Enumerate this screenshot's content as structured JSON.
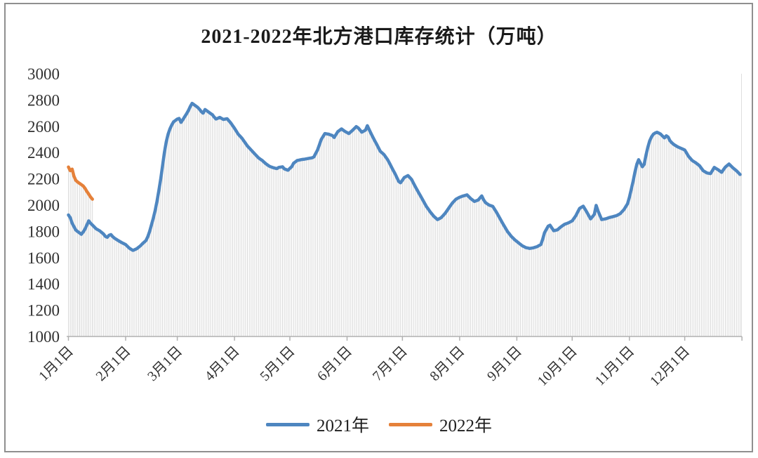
{
  "title": "2021-2022年北方港口库存统计（万吨）",
  "chart_data": {
    "type": "line",
    "title": "2021-2022年北方港口库存统计（万吨）",
    "unit": "万吨",
    "grid": false,
    "droplines": {
      "show": true,
      "color": "#d9d9d9"
    },
    "axis_color": "#b0b0b0",
    "label_color": "#303030",
    "y_axis": {
      "min": 1000,
      "max": 3000,
      "step": 200,
      "tick_labels": [
        "3000",
        "2800",
        "2600",
        "2400",
        "2200",
        "2000",
        "1800",
        "1600",
        "1400",
        "1200",
        "1000"
      ]
    },
    "x_axis": {
      "tick_labels": [
        "1月1日",
        "2月1日",
        "3月1日",
        "4月1日",
        "5月1日",
        "6月1日",
        "7月1日",
        "8月1日",
        "9月1日",
        "10月1日",
        "11月1日",
        "12月1日"
      ],
      "month_start_doys": [
        1,
        32,
        60,
        91,
        121,
        152,
        182,
        213,
        244,
        274,
        305,
        335
      ],
      "days_in_year": 365
    },
    "legend": {
      "position": "bottom",
      "entries": [
        {
          "label": "2021年",
          "color": "#4e86c0"
        },
        {
          "label": "2022年",
          "color": "#e5813a"
        }
      ]
    },
    "series": [
      {
        "name": "2021年",
        "color": "#4e86c0",
        "points": [
          [
            1,
            1925
          ],
          [
            2,
            1905
          ],
          [
            3,
            1862
          ],
          [
            5,
            1810
          ],
          [
            7,
            1788
          ],
          [
            8,
            1778
          ],
          [
            9,
            1795
          ],
          [
            10,
            1818
          ],
          [
            11,
            1850
          ],
          [
            12,
            1880
          ],
          [
            13,
            1862
          ],
          [
            14,
            1848
          ],
          [
            16,
            1820
          ],
          [
            18,
            1804
          ],
          [
            20,
            1780
          ],
          [
            21,
            1762
          ],
          [
            22,
            1755
          ],
          [
            23,
            1770
          ],
          [
            24,
            1776
          ],
          [
            25,
            1760
          ],
          [
            26,
            1748
          ],
          [
            28,
            1730
          ],
          [
            30,
            1714
          ],
          [
            32,
            1700
          ],
          [
            34,
            1672
          ],
          [
            36,
            1655
          ],
          [
            38,
            1668
          ],
          [
            40,
            1690
          ],
          [
            41,
            1705
          ],
          [
            43,
            1730
          ],
          [
            44,
            1760
          ],
          [
            45,
            1800
          ],
          [
            46,
            1850
          ],
          [
            47,
            1900
          ],
          [
            48,
            1960
          ],
          [
            49,
            2030
          ],
          [
            50,
            2110
          ],
          [
            51,
            2200
          ],
          [
            52,
            2300
          ],
          [
            53,
            2400
          ],
          [
            54,
            2480
          ],
          [
            55,
            2540
          ],
          [
            56,
            2580
          ],
          [
            57,
            2610
          ],
          [
            58,
            2635
          ],
          [
            60,
            2655
          ],
          [
            61,
            2660
          ],
          [
            62,
            2630
          ],
          [
            63,
            2650
          ],
          [
            65,
            2695
          ],
          [
            66,
            2720
          ],
          [
            67,
            2750
          ],
          [
            68,
            2775
          ],
          [
            69,
            2765
          ],
          [
            70,
            2755
          ],
          [
            71,
            2745
          ],
          [
            72,
            2730
          ],
          [
            73,
            2712
          ],
          [
            74,
            2700
          ],
          [
            75,
            2728
          ],
          [
            76,
            2718
          ],
          [
            77,
            2708
          ],
          [
            79,
            2688
          ],
          [
            80,
            2670
          ],
          [
            81,
            2655
          ],
          [
            83,
            2668
          ],
          [
            85,
            2652
          ],
          [
            87,
            2658
          ],
          [
            89,
            2625
          ],
          [
            90,
            2605
          ],
          [
            91,
            2585
          ],
          [
            93,
            2540
          ],
          [
            95,
            2510
          ],
          [
            96,
            2490
          ],
          [
            98,
            2450
          ],
          [
            100,
            2420
          ],
          [
            102,
            2390
          ],
          [
            104,
            2360
          ],
          [
            106,
            2340
          ],
          [
            108,
            2315
          ],
          [
            110,
            2295
          ],
          [
            112,
            2285
          ],
          [
            114,
            2278
          ],
          [
            115,
            2287
          ],
          [
            117,
            2292
          ],
          [
            118,
            2276
          ],
          [
            120,
            2265
          ],
          [
            121,
            2280
          ],
          [
            122,
            2292
          ],
          [
            123,
            2319
          ],
          [
            125,
            2340
          ],
          [
            127,
            2346
          ],
          [
            129,
            2350
          ],
          [
            131,
            2355
          ],
          [
            133,
            2360
          ],
          [
            134,
            2367
          ],
          [
            136,
            2420
          ],
          [
            138,
            2500
          ],
          [
            140,
            2545
          ],
          [
            142,
            2540
          ],
          [
            144,
            2530
          ],
          [
            145,
            2515
          ],
          [
            147,
            2560
          ],
          [
            149,
            2580
          ],
          [
            151,
            2560
          ],
          [
            153,
            2545
          ],
          [
            155,
            2570
          ],
          [
            157,
            2598
          ],
          [
            158,
            2588
          ],
          [
            160,
            2555
          ],
          [
            162,
            2571
          ],
          [
            163,
            2605
          ],
          [
            165,
            2545
          ],
          [
            166,
            2517
          ],
          [
            168,
            2464
          ],
          [
            170,
            2410
          ],
          [
            172,
            2385
          ],
          [
            174,
            2346
          ],
          [
            176,
            2292
          ],
          [
            178,
            2239
          ],
          [
            180,
            2180
          ],
          [
            181,
            2170
          ],
          [
            183,
            2210
          ],
          [
            185,
            2225
          ],
          [
            187,
            2195
          ],
          [
            189,
            2140
          ],
          [
            191,
            2090
          ],
          [
            193,
            2040
          ],
          [
            195,
            1990
          ],
          [
            197,
            1950
          ],
          [
            199,
            1915
          ],
          [
            201,
            1890
          ],
          [
            203,
            1905
          ],
          [
            205,
            1935
          ],
          [
            207,
            1975
          ],
          [
            209,
            2015
          ],
          [
            211,
            2045
          ],
          [
            213,
            2060
          ],
          [
            215,
            2070
          ],
          [
            217,
            2078
          ],
          [
            219,
            2050
          ],
          [
            221,
            2028
          ],
          [
            223,
            2038
          ],
          [
            225,
            2070
          ],
          [
            226,
            2040
          ],
          [
            227,
            2019
          ],
          [
            229,
            2000
          ],
          [
            231,
            1990
          ],
          [
            233,
            1945
          ],
          [
            235,
            1895
          ],
          [
            237,
            1845
          ],
          [
            239,
            1798
          ],
          [
            241,
            1762
          ],
          [
            243,
            1735
          ],
          [
            245,
            1712
          ],
          [
            247,
            1690
          ],
          [
            249,
            1676
          ],
          [
            251,
            1670
          ],
          [
            253,
            1675
          ],
          [
            255,
            1684
          ],
          [
            257,
            1700
          ],
          [
            258,
            1740
          ],
          [
            259,
            1790
          ],
          [
            261,
            1840
          ],
          [
            262,
            1847
          ],
          [
            264,
            1805
          ],
          [
            266,
            1812
          ],
          [
            268,
            1836
          ],
          [
            270,
            1855
          ],
          [
            272,
            1865
          ],
          [
            274,
            1880
          ],
          [
            276,
            1920
          ],
          [
            278,
            1975
          ],
          [
            280,
            1992
          ],
          [
            282,
            1945
          ],
          [
            284,
            1895
          ],
          [
            286,
            1930
          ],
          [
            287,
            1998
          ],
          [
            288,
            1955
          ],
          [
            290,
            1890
          ],
          [
            292,
            1895
          ],
          [
            294,
            1905
          ],
          [
            296,
            1912
          ],
          [
            298,
            1920
          ],
          [
            300,
            1935
          ],
          [
            302,
            1965
          ],
          [
            304,
            2010
          ],
          [
            305,
            2060
          ],
          [
            306,
            2120
          ],
          [
            307,
            2180
          ],
          [
            308,
            2250
          ],
          [
            309,
            2310
          ],
          [
            310,
            2346
          ],
          [
            311,
            2320
          ],
          [
            312,
            2292
          ],
          [
            313,
            2310
          ],
          [
            314,
            2380
          ],
          [
            315,
            2440
          ],
          [
            316,
            2490
          ],
          [
            317,
            2520
          ],
          [
            318,
            2540
          ],
          [
            319,
            2550
          ],
          [
            320,
            2555
          ],
          [
            321,
            2548
          ],
          [
            322,
            2540
          ],
          [
            323,
            2525
          ],
          [
            324,
            2512
          ],
          [
            325,
            2528
          ],
          [
            326,
            2518
          ],
          [
            327,
            2490
          ],
          [
            328,
            2475
          ],
          [
            329,
            2462
          ],
          [
            331,
            2445
          ],
          [
            333,
            2432
          ],
          [
            335,
            2420
          ],
          [
            337,
            2372
          ],
          [
            339,
            2340
          ],
          [
            341,
            2322
          ],
          [
            343,
            2300
          ],
          [
            345,
            2262
          ],
          [
            347,
            2245
          ],
          [
            349,
            2240
          ],
          [
            351,
            2287
          ],
          [
            353,
            2270
          ],
          [
            355,
            2250
          ],
          [
            357,
            2290
          ],
          [
            359,
            2313
          ],
          [
            361,
            2285
          ],
          [
            363,
            2262
          ],
          [
            365,
            2233
          ]
        ]
      },
      {
        "name": "2022年",
        "color": "#e5813a",
        "points": [
          [
            1,
            2290
          ],
          [
            2,
            2262
          ],
          [
            3,
            2274
          ],
          [
            4,
            2220
          ],
          [
            5,
            2188
          ],
          [
            6,
            2176
          ],
          [
            7,
            2166
          ],
          [
            8,
            2156
          ],
          [
            9,
            2146
          ],
          [
            10,
            2128
          ],
          [
            11,
            2104
          ],
          [
            12,
            2084
          ],
          [
            13,
            2062
          ],
          [
            14,
            2045
          ]
        ]
      }
    ]
  }
}
